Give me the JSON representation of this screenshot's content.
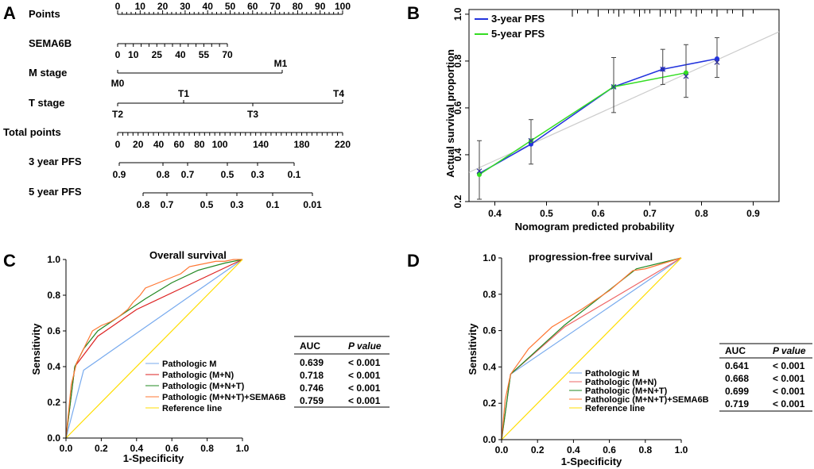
{
  "panels": {
    "A": "A",
    "B": "B",
    "C": "C",
    "D": "D"
  },
  "colors": {
    "blue": "#2233dd",
    "green": "#33dd22",
    "red": "#dd2222",
    "orange": "#ff7733",
    "yellow": "#ffdd00",
    "lightblue": "#77aaee",
    "gray": "#cccccc",
    "darkgreen": "#228822",
    "lightred": "#ee6666"
  },
  "nomogram": {
    "rows": [
      {
        "label": "Points",
        "ticks": [
          "0",
          "10",
          "20",
          "30",
          "40",
          "50",
          "60",
          "70",
          "80",
          "90",
          "100"
        ]
      },
      {
        "label": "SEMA6B",
        "ticks": [
          "0",
          "10",
          "25",
          "40",
          "55",
          "70"
        ]
      },
      {
        "label": "M stage",
        "ticks": [
          "M0",
          "M1"
        ]
      },
      {
        "label": "T stage",
        "ticks_top": [
          "T1",
          "T4"
        ],
        "ticks_bottom": [
          "T2",
          "T3"
        ]
      },
      {
        "label": "Total points",
        "ticks": [
          "0",
          "20",
          "40",
          "60",
          "80",
          "100",
          "140",
          "180",
          "220"
        ]
      },
      {
        "label": "3 year PFS",
        "ticks": [
          "0.9",
          "0.8",
          "0.7",
          "0.5",
          "0.3",
          "0.1"
        ]
      },
      {
        "label": "5 year PFS",
        "ticks": [
          "0.8",
          "0.7",
          "0.5",
          "0.3",
          "0.1",
          "0.01"
        ]
      }
    ]
  },
  "chart_data": [
    {
      "id": "B",
      "type": "line",
      "title": "",
      "xlabel": "Nomogram predicted probability",
      "ylabel": "Actual survival proportion",
      "xlim": [
        0.35,
        0.95
      ],
      "ylim": [
        0.2,
        1.02
      ],
      "xticks": [
        "0.4",
        "0.5",
        "0.6",
        "0.7",
        "0.8",
        "0.9"
      ],
      "yticks": [
        "0.2",
        "0.4",
        "0.6",
        "0.8",
        "1.0"
      ],
      "legend": [
        "3-year PFS",
        "5-year PFS"
      ],
      "series": [
        {
          "name": "3-year PFS",
          "x": [
            0.37,
            0.47,
            0.63,
            0.725,
            0.83
          ],
          "y": [
            0.32,
            0.445,
            0.69,
            0.765,
            0.81
          ],
          "err_lo": [
            0.21,
            0.36,
            0.58,
            0.7,
            0.73
          ],
          "err_hi": [
            0.46,
            0.55,
            0.815,
            0.85,
            0.9
          ]
        },
        {
          "name": "5-year PFS",
          "x": [
            0.37,
            0.47,
            0.63,
            0.77
          ],
          "y": [
            0.315,
            0.46,
            0.69,
            0.75
          ],
          "err_lo": [
            0.21,
            0.36,
            0.58,
            0.645
          ],
          "err_hi": [
            0.46,
            0.55,
            0.815,
            0.87
          ]
        }
      ],
      "crosses": [
        {
          "x": 0.37,
          "y": 0.33
        },
        {
          "x": 0.47,
          "y": 0.46
        },
        {
          "x": 0.63,
          "y": 0.69
        },
        {
          "x": 0.725,
          "y": 0.765
        },
        {
          "x": 0.77,
          "y": 0.735
        },
        {
          "x": 0.83,
          "y": 0.795
        }
      ],
      "reference_line": {
        "x": [
          0.35,
          0.95
        ],
        "y": [
          0.325,
          0.925
        ]
      },
      "rug": [
        0.55,
        0.56,
        0.58,
        0.6,
        0.62,
        0.63,
        0.64,
        0.65,
        0.67,
        0.68,
        0.69,
        0.7,
        0.72,
        0.73,
        0.74,
        0.75,
        0.76,
        0.78,
        0.79,
        0.8,
        0.82,
        0.83,
        0.85,
        0.86,
        0.88,
        0.9
      ]
    },
    {
      "id": "C",
      "type": "line",
      "title": "Overall survival",
      "xlabel": "1-Specificity",
      "ylabel": "Sensitivity",
      "xlim": [
        0,
        1
      ],
      "ylim": [
        0,
        1
      ],
      "ticks": [
        "0.0",
        "0.2",
        "0.4",
        "0.6",
        "0.8",
        "1.0"
      ],
      "series": [
        {
          "name": "Pathologic M",
          "x": [
            0,
            0.1,
            1
          ],
          "y": [
            0,
            0.38,
            1
          ]
        },
        {
          "name": "Pathologic (M+N)",
          "x": [
            0,
            0.05,
            0.18,
            0.4,
            0.7,
            1
          ],
          "y": [
            0,
            0.4,
            0.57,
            0.72,
            0.86,
            1
          ]
        },
        {
          "name": "Pathologic (M+N+T)",
          "x": [
            0,
            0.05,
            0.1,
            0.18,
            0.3,
            0.45,
            0.6,
            0.75,
            0.9,
            1
          ],
          "y": [
            0,
            0.4,
            0.5,
            0.6,
            0.68,
            0.78,
            0.87,
            0.94,
            0.98,
            1
          ]
        },
        {
          "name": "Pathologic (M+N+T)+SEMA6B",
          "x": [
            0,
            0.03,
            0.06,
            0.1,
            0.15,
            0.2,
            0.25,
            0.3,
            0.35,
            0.38,
            0.42,
            0.45,
            0.5,
            0.55,
            0.6,
            0.65,
            0.7,
            0.75,
            0.8,
            0.85,
            0.9,
            0.95,
            1
          ],
          "y": [
            0,
            0.3,
            0.42,
            0.5,
            0.6,
            0.63,
            0.65,
            0.68,
            0.72,
            0.76,
            0.8,
            0.84,
            0.86,
            0.88,
            0.9,
            0.92,
            0.96,
            0.97,
            0.98,
            0.99,
            0.99,
            1,
            1
          ]
        },
        {
          "name": "Reference line",
          "x": [
            0,
            1
          ],
          "y": [
            0,
            1
          ]
        }
      ],
      "table": {
        "headers": [
          "AUC",
          "P value"
        ],
        "rows": [
          [
            "0.639",
            "< 0.001"
          ],
          [
            "0.718",
            "< 0.001"
          ],
          [
            "0.746",
            "< 0.001"
          ],
          [
            "0.759",
            "< 0.001"
          ]
        ]
      }
    },
    {
      "id": "D",
      "type": "line",
      "title": "progression-free survival",
      "xlabel": "1-Specificity",
      "ylabel": "Sensitivity",
      "xlim": [
        0,
        1
      ],
      "ylim": [
        0,
        1
      ],
      "ticks": [
        "0.0",
        "0.2",
        "0.4",
        "0.6",
        "0.8",
        "1.0"
      ],
      "series": [
        {
          "name": "Pathologic M",
          "x": [
            0,
            0.05,
            1
          ],
          "y": [
            0,
            0.36,
            1
          ]
        },
        {
          "name": "Pathologic (M+N)",
          "x": [
            0,
            0.05,
            0.35,
            1
          ],
          "y": [
            0,
            0.36,
            0.62,
            1
          ]
        },
        {
          "name": "Pathologic (M+N+T)",
          "x": [
            0,
            0.05,
            0.35,
            0.75,
            1
          ],
          "y": [
            0,
            0.36,
            0.63,
            0.94,
            1
          ]
        },
        {
          "name": "Pathologic (M+N+T)+SEMA6B",
          "x": [
            0,
            0.02,
            0.05,
            0.15,
            0.28,
            0.45,
            0.6,
            0.73,
            0.8,
            0.9,
            1
          ],
          "y": [
            0,
            0.22,
            0.36,
            0.5,
            0.62,
            0.72,
            0.82,
            0.93,
            0.94,
            0.97,
            1
          ]
        },
        {
          "name": "Reference line",
          "x": [
            0,
            1
          ],
          "y": [
            0,
            1
          ]
        }
      ],
      "table": {
        "headers": [
          "AUC",
          "P value"
        ],
        "rows": [
          [
            "0.641",
            "< 0.001"
          ],
          [
            "0.668",
            "< 0.001"
          ],
          [
            "0.699",
            "< 0.001"
          ],
          [
            "0.719",
            "< 0.001"
          ]
        ]
      }
    }
  ]
}
